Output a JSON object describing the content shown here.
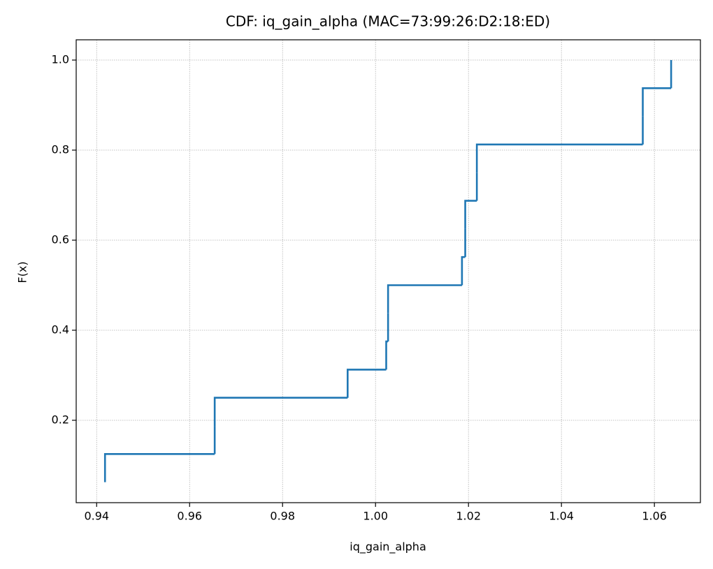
{
  "chart_data": {
    "type": "step",
    "title": "CDF: iq_gain_alpha (MAC=73:99:26:D2:18:ED)",
    "x_label": "iq_gain_alpha",
    "y_label": "F(x)",
    "series": [
      {
        "color": "#1f77b4",
        "x": [
          0.9418,
          0.9418,
          0.9654,
          0.9654,
          0.994,
          1.0023,
          1.0027,
          1.0027,
          1.0186,
          1.0193,
          1.0193,
          1.0218,
          1.0218,
          1.0575,
          1.0575,
          1.0636
        ],
        "values": [
          0.0625,
          0.125,
          0.1875,
          0.25,
          0.3125,
          0.375,
          0.4375,
          0.5,
          0.5625,
          0.625,
          0.6875,
          0.75,
          0.8125,
          0.875,
          0.9375,
          1.0
        ]
      }
    ],
    "xlim": [
      0.9356,
      1.0699
    ],
    "ylim": [
      0.017,
      1.045
    ],
    "xticks": [
      0.94,
      0.96,
      0.98,
      {
        "value": 1.0,
        "label": "1.00"
      },
      1.02,
      1.04,
      1.06
    ],
    "yticks": [
      0.2,
      0.4,
      0.6,
      0.8,
      {
        "value": 1.0,
        "label": "1.0"
      }
    ],
    "grid": true
  }
}
